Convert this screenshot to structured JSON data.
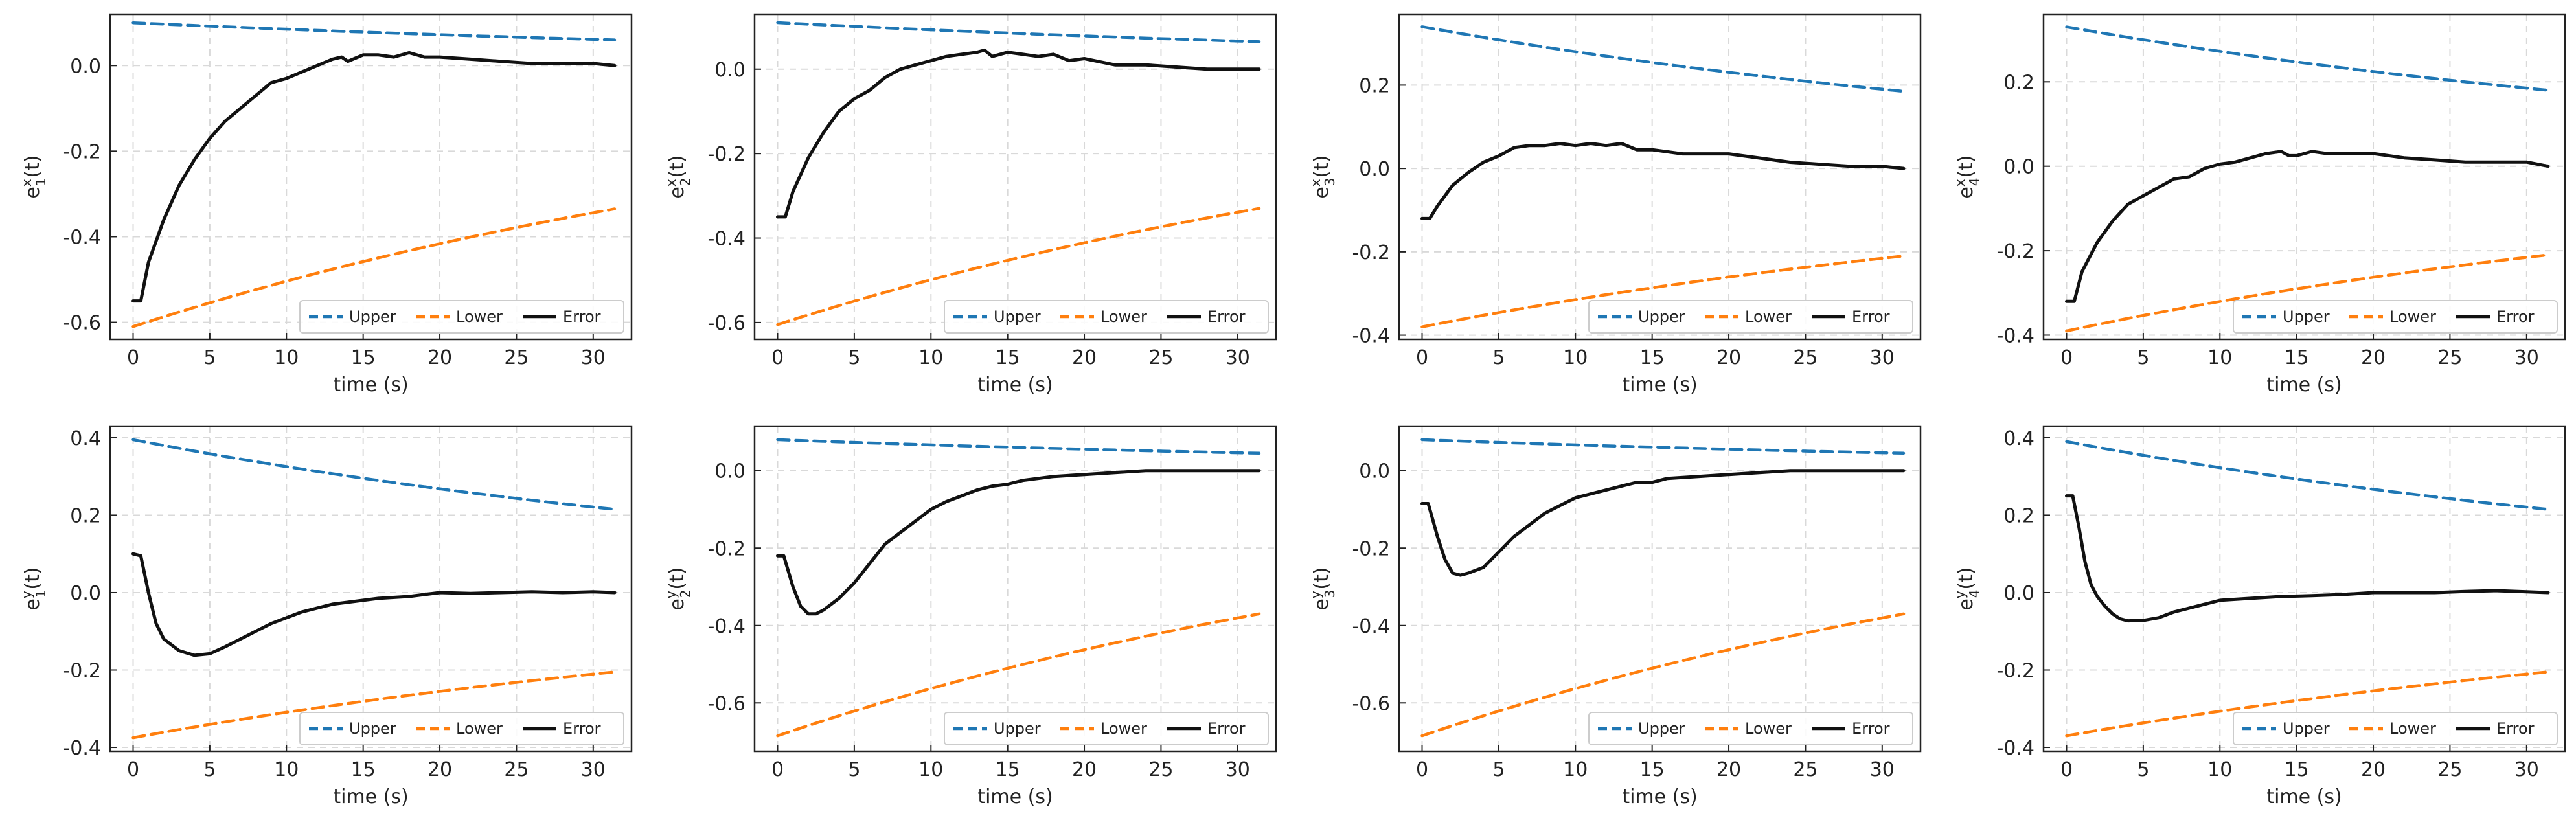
{
  "figure": {
    "legend_labels": [
      "Upper",
      "Lower",
      "Error"
    ],
    "xlabel": "time (s)"
  },
  "colors": {
    "upper": "#1f77b4",
    "lower": "#ff7f0e",
    "error": "#111111",
    "grid": "#d9d9d9",
    "axis": "#222222"
  },
  "chart_data": [
    {
      "type": "line",
      "ylabel_var": "e",
      "ylabel_sup": "x",
      "ylabel_sub": "1",
      "ylabel_suffix": "(t)",
      "xlabel": "time (s)",
      "xlim": [
        -1.5,
        32.5
      ],
      "ylim": [
        -0.64,
        0.12
      ],
      "xticks": [
        0,
        5,
        10,
        15,
        20,
        25,
        30
      ],
      "yticks": [
        -0.6,
        -0.4,
        -0.2,
        0.0
      ],
      "ytick_labels": [
        "-0.6",
        "-0.4",
        "-0.2",
        "0.0"
      ],
      "legend_position": "lower-right",
      "series": [
        {
          "name": "Upper",
          "style": "dashed",
          "x": [
            0,
            31.4
          ],
          "values": [
            0.1,
            0.06
          ],
          "shape": "exp"
        },
        {
          "name": "Lower",
          "style": "dashed",
          "x": [
            0,
            31.4
          ],
          "values": [
            -0.61,
            -0.335
          ],
          "shape": "exp"
        },
        {
          "name": "Error",
          "style": "solid",
          "x": [
            0,
            0.5,
            1,
            2,
            3,
            4,
            5,
            6,
            7,
            8,
            9,
            10,
            11,
            12,
            13,
            13.6,
            14,
            15,
            16,
            17,
            18,
            19,
            20,
            22,
            24,
            26,
            28,
            30,
            31.4
          ],
          "values": [
            -0.55,
            -0.55,
            -0.46,
            -0.36,
            -0.28,
            -0.22,
            -0.17,
            -0.13,
            -0.1,
            -0.07,
            -0.04,
            -0.03,
            -0.015,
            0.0,
            0.015,
            0.02,
            0.01,
            0.025,
            0.025,
            0.02,
            0.03,
            0.02,
            0.02,
            0.015,
            0.01,
            0.005,
            0.005,
            0.005,
            0.0
          ]
        }
      ]
    },
    {
      "type": "line",
      "ylabel_var": "e",
      "ylabel_sup": "x",
      "ylabel_sub": "2",
      "ylabel_suffix": "(t)",
      "xlabel": "time (s)",
      "xlim": [
        -1.5,
        32.5
      ],
      "ylim": [
        -0.64,
        0.13
      ],
      "xticks": [
        0,
        5,
        10,
        15,
        20,
        25,
        30
      ],
      "yticks": [
        -0.6,
        -0.4,
        -0.2,
        0.0
      ],
      "ytick_labels": [
        "-0.6",
        "-0.4",
        "-0.2",
        "0.0"
      ],
      "legend_position": "lower-right",
      "series": [
        {
          "name": "Upper",
          "style": "dashed",
          "x": [
            0,
            31.4
          ],
          "values": [
            0.11,
            0.065
          ],
          "shape": "exp"
        },
        {
          "name": "Lower",
          "style": "dashed",
          "x": [
            0,
            31.4
          ],
          "values": [
            -0.605,
            -0.33
          ],
          "shape": "exp"
        },
        {
          "name": "Error",
          "style": "solid",
          "x": [
            0,
            0.5,
            1,
            2,
            3,
            4,
            5,
            6,
            7,
            8,
            9,
            10,
            11,
            12,
            13,
            13.5,
            14,
            15,
            16,
            17,
            18,
            19,
            20,
            22,
            24,
            26,
            28,
            30,
            31.4
          ],
          "values": [
            -0.35,
            -0.35,
            -0.29,
            -0.21,
            -0.15,
            -0.1,
            -0.07,
            -0.05,
            -0.02,
            0.0,
            0.01,
            0.02,
            0.03,
            0.035,
            0.04,
            0.045,
            0.03,
            0.04,
            0.035,
            0.03,
            0.035,
            0.02,
            0.025,
            0.01,
            0.01,
            0.005,
            0.0,
            0.0,
            0.0
          ]
        }
      ]
    },
    {
      "type": "line",
      "ylabel_var": "e",
      "ylabel_sup": "x",
      "ylabel_sub": "3",
      "ylabel_suffix": "(t)",
      "xlabel": "time (s)",
      "xlim": [
        -1.5,
        32.5
      ],
      "ylim": [
        -0.41,
        0.37
      ],
      "xticks": [
        0,
        5,
        10,
        15,
        20,
        25,
        30
      ],
      "yticks": [
        -0.4,
        -0.2,
        0.0,
        0.2
      ],
      "ytick_labels": [
        "-0.4",
        "-0.2",
        "0.0",
        "0.2"
      ],
      "legend_position": "lower-right",
      "series": [
        {
          "name": "Upper",
          "style": "dashed",
          "x": [
            0,
            31.4
          ],
          "values": [
            0.34,
            0.185
          ],
          "shape": "exp"
        },
        {
          "name": "Lower",
          "style": "dashed",
          "x": [
            0,
            31.4
          ],
          "values": [
            -0.38,
            -0.21
          ],
          "shape": "exp"
        },
        {
          "name": "Error",
          "style": "solid",
          "x": [
            0,
            0.5,
            1,
            2,
            3,
            4,
            5,
            6,
            7,
            8,
            9,
            10,
            11,
            12,
            13,
            14,
            15,
            16,
            17,
            18,
            19,
            20,
            22,
            24,
            26,
            28,
            30,
            31.4
          ],
          "values": [
            -0.12,
            -0.12,
            -0.09,
            -0.04,
            -0.01,
            0.015,
            0.03,
            0.05,
            0.055,
            0.055,
            0.06,
            0.055,
            0.06,
            0.055,
            0.06,
            0.045,
            0.045,
            0.04,
            0.035,
            0.035,
            0.035,
            0.035,
            0.025,
            0.015,
            0.01,
            0.005,
            0.005,
            0.0
          ]
        }
      ]
    },
    {
      "type": "line",
      "ylabel_var": "e",
      "ylabel_sup": "x",
      "ylabel_sub": "4",
      "ylabel_suffix": "(t)",
      "xlabel": "time (s)",
      "xlim": [
        -1.5,
        32.5
      ],
      "ylim": [
        -0.41,
        0.36
      ],
      "xticks": [
        0,
        5,
        10,
        15,
        20,
        25,
        30
      ],
      "yticks": [
        -0.4,
        -0.2,
        0.0,
        0.2
      ],
      "ytick_labels": [
        "-0.4",
        "-0.2",
        "0.0",
        "0.2"
      ],
      "legend_position": "lower-right",
      "series": [
        {
          "name": "Upper",
          "style": "dashed",
          "x": [
            0,
            31.4
          ],
          "values": [
            0.33,
            0.18
          ],
          "shape": "exp"
        },
        {
          "name": "Lower",
          "style": "dashed",
          "x": [
            0,
            31.4
          ],
          "values": [
            -0.39,
            -0.21
          ],
          "shape": "exp"
        },
        {
          "name": "Error",
          "style": "solid",
          "x": [
            0,
            0.5,
            1,
            2,
            3,
            4,
            5,
            6,
            7,
            8,
            9,
            10,
            11,
            12,
            13,
            14,
            14.5,
            15,
            16,
            17,
            18,
            19,
            20,
            22,
            24,
            26,
            28,
            30,
            31.4
          ],
          "values": [
            -0.32,
            -0.32,
            -0.25,
            -0.18,
            -0.13,
            -0.09,
            -0.07,
            -0.05,
            -0.03,
            -0.025,
            -0.005,
            0.005,
            0.01,
            0.02,
            0.03,
            0.035,
            0.025,
            0.025,
            0.035,
            0.03,
            0.03,
            0.03,
            0.03,
            0.02,
            0.015,
            0.01,
            0.01,
            0.01,
            0.0
          ]
        }
      ]
    },
    {
      "type": "line",
      "ylabel_var": "e",
      "ylabel_sup": "y",
      "ylabel_sub": "1",
      "ylabel_suffix": "(t)",
      "xlabel": "time (s)",
      "xlim": [
        -1.5,
        32.5
      ],
      "ylim": [
        -0.41,
        0.43
      ],
      "xticks": [
        0,
        5,
        10,
        15,
        20,
        25,
        30
      ],
      "yticks": [
        -0.4,
        -0.2,
        0.0,
        0.2,
        0.4
      ],
      "ytick_labels": [
        "-0.4",
        "-0.2",
        "0.0",
        "0.2",
        "0.4"
      ],
      "legend_position": "lower-right",
      "series": [
        {
          "name": "Upper",
          "style": "dashed",
          "x": [
            0,
            31.4
          ],
          "values": [
            0.395,
            0.215
          ],
          "shape": "exp"
        },
        {
          "name": "Lower",
          "style": "dashed",
          "x": [
            0,
            31.4
          ],
          "values": [
            -0.375,
            -0.205
          ],
          "shape": "exp"
        },
        {
          "name": "Error",
          "style": "solid",
          "x": [
            0,
            0.5,
            1,
            1.5,
            2,
            3,
            4,
            5,
            6,
            7,
            8,
            9,
            10,
            11,
            12,
            13,
            14,
            15,
            16,
            18,
            20,
            22,
            24,
            26,
            28,
            30,
            31.4
          ],
          "values": [
            0.1,
            0.095,
            0.0,
            -0.08,
            -0.12,
            -0.15,
            -0.162,
            -0.158,
            -0.14,
            -0.12,
            -0.1,
            -0.08,
            -0.065,
            -0.05,
            -0.04,
            -0.03,
            -0.025,
            -0.02,
            -0.015,
            -0.01,
            0.0,
            -0.002,
            0.0,
            0.002,
            0.0,
            0.002,
            0.0
          ]
        }
      ]
    },
    {
      "type": "line",
      "ylabel_var": "e",
      "ylabel_sup": "y",
      "ylabel_sub": "2",
      "ylabel_suffix": "(t)",
      "xlabel": "time (s)",
      "xlim": [
        -1.5,
        32.5
      ],
      "ylim": [
        -0.725,
        0.115
      ],
      "xticks": [
        0,
        5,
        10,
        15,
        20,
        25,
        30
      ],
      "yticks": [
        -0.6,
        -0.4,
        -0.2,
        0.0
      ],
      "ytick_labels": [
        "-0.6",
        "-0.4",
        "-0.2",
        "0.0"
      ],
      "legend_position": "lower-right",
      "series": [
        {
          "name": "Upper",
          "style": "dashed",
          "x": [
            0,
            31.4
          ],
          "values": [
            0.08,
            0.045
          ],
          "shape": "exp"
        },
        {
          "name": "Lower",
          "style": "dashed",
          "x": [
            0,
            31.4
          ],
          "values": [
            -0.685,
            -0.37
          ],
          "shape": "exp"
        },
        {
          "name": "Error",
          "style": "solid",
          "x": [
            0,
            0.4,
            1,
            1.5,
            2,
            2.5,
            3,
            4,
            5,
            6,
            7,
            8,
            9,
            10,
            11,
            12,
            13,
            14,
            15,
            16,
            18,
            20,
            22,
            24,
            26,
            28,
            30,
            31.4
          ],
          "values": [
            -0.22,
            -0.22,
            -0.3,
            -0.35,
            -0.37,
            -0.37,
            -0.36,
            -0.33,
            -0.29,
            -0.24,
            -0.19,
            -0.16,
            -0.13,
            -0.1,
            -0.08,
            -0.065,
            -0.05,
            -0.04,
            -0.035,
            -0.025,
            -0.015,
            -0.01,
            -0.005,
            0.0,
            0.0,
            0.0,
            0.0,
            0.0
          ]
        }
      ]
    },
    {
      "type": "line",
      "ylabel_var": "e",
      "ylabel_sup": "y",
      "ylabel_sub": "3",
      "ylabel_suffix": "(t)",
      "xlabel": "time (s)",
      "xlim": [
        -1.5,
        32.5
      ],
      "ylim": [
        -0.725,
        0.115
      ],
      "xticks": [
        0,
        5,
        10,
        15,
        20,
        25,
        30
      ],
      "yticks": [
        -0.6,
        -0.4,
        -0.2,
        0.0
      ],
      "ytick_labels": [
        "-0.6",
        "-0.4",
        "-0.2",
        "0.0"
      ],
      "legend_position": "lower-right",
      "series": [
        {
          "name": "Upper",
          "style": "dashed",
          "x": [
            0,
            31.4
          ],
          "values": [
            0.08,
            0.045
          ],
          "shape": "exp"
        },
        {
          "name": "Lower",
          "style": "dashed",
          "x": [
            0,
            31.4
          ],
          "values": [
            -0.685,
            -0.37
          ],
          "shape": "exp"
        },
        {
          "name": "Error",
          "style": "solid",
          "x": [
            0,
            0.4,
            1,
            1.5,
            2,
            2.5,
            3,
            4,
            5,
            6,
            7,
            8,
            9,
            10,
            11,
            12,
            13,
            14,
            15,
            16,
            18,
            20,
            22,
            24,
            26,
            28,
            30,
            31.4
          ],
          "values": [
            -0.085,
            -0.085,
            -0.17,
            -0.23,
            -0.265,
            -0.27,
            -0.265,
            -0.25,
            -0.21,
            -0.17,
            -0.14,
            -0.11,
            -0.09,
            -0.07,
            -0.06,
            -0.05,
            -0.04,
            -0.03,
            -0.03,
            -0.02,
            -0.015,
            -0.01,
            -0.005,
            0.0,
            0.0,
            0.0,
            0.0,
            0.0
          ]
        }
      ]
    },
    {
      "type": "line",
      "ylabel_var": "e",
      "ylabel_sup": "y",
      "ylabel_sub": "4",
      "ylabel_suffix": "(t)",
      "xlabel": "time (s)",
      "xlim": [
        -1.5,
        32.5
      ],
      "ylim": [
        -0.41,
        0.43
      ],
      "xticks": [
        0,
        5,
        10,
        15,
        20,
        25,
        30
      ],
      "yticks": [
        -0.4,
        -0.2,
        0.0,
        0.2,
        0.4
      ],
      "ytick_labels": [
        "-0.4",
        "-0.2",
        "0.0",
        "0.2",
        "0.4"
      ],
      "legend_position": "lower-right",
      "series": [
        {
          "name": "Upper",
          "style": "dashed",
          "x": [
            0,
            31.4
          ],
          "values": [
            0.39,
            0.215
          ],
          "shape": "exp"
        },
        {
          "name": "Lower",
          "style": "dashed",
          "x": [
            0,
            31.4
          ],
          "values": [
            -0.37,
            -0.205
          ],
          "shape": "exp"
        },
        {
          "name": "Error",
          "style": "solid",
          "x": [
            0,
            0.4,
            0.8,
            1.2,
            1.6,
            2,
            2.5,
            3,
            3.5,
            4,
            5,
            6,
            7,
            8,
            9,
            10,
            12,
            14,
            16,
            18,
            20,
            22,
            24,
            26,
            28,
            30,
            31.4
          ],
          "values": [
            0.25,
            0.25,
            0.17,
            0.08,
            0.02,
            -0.01,
            -0.035,
            -0.055,
            -0.068,
            -0.073,
            -0.072,
            -0.065,
            -0.05,
            -0.04,
            -0.03,
            -0.02,
            -0.015,
            -0.01,
            -0.008,
            -0.005,
            0.0,
            0.0,
            0.0,
            0.003,
            0.005,
            0.002,
            0.0
          ]
        }
      ]
    }
  ]
}
